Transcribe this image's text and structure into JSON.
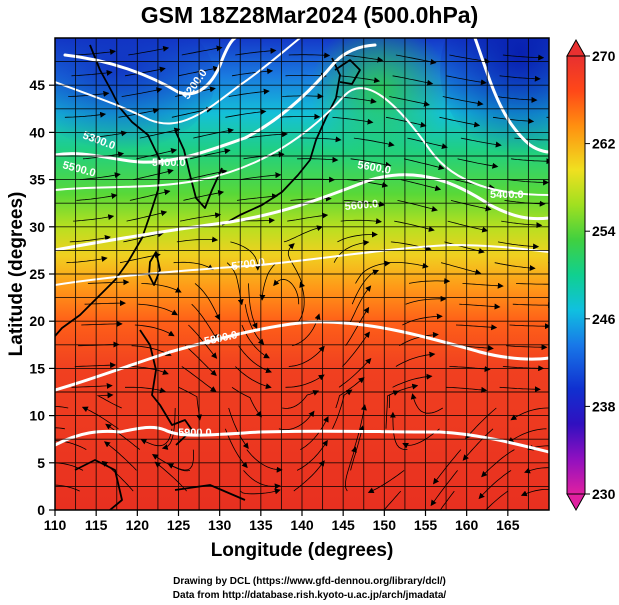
{
  "title": "GSM 18Z28Mar2024 (500.0hPa)",
  "xlabel": "Longitude (degrees)",
  "ylabel": "Latitude  (degrees)",
  "x_ticks": [
    "110",
    "115",
    "120",
    "125",
    "130",
    "135",
    "140",
    "145",
    "150",
    "155",
    "160",
    "165"
  ],
  "y_ticks": [
    "0",
    "5",
    "10",
    "15",
    "20",
    "25",
    "30",
    "35",
    "40",
    "45"
  ],
  "map": {
    "lon_range": [
      110,
      170
    ],
    "lat_range": [
      0,
      50
    ],
    "field": "temperature (K) with geopotential height contours (m) and wind streamlines"
  },
  "colorbar": {
    "range": [
      230,
      270
    ],
    "ticks": [
      "270",
      "262",
      "254",
      "246",
      "238",
      "230"
    ],
    "colors": [
      "#e020a0",
      "#8000c0",
      "#1020c0",
      "#1860e0",
      "#10b0e8",
      "#10d0a0",
      "#40d040",
      "#a8e020",
      "#f0e020",
      "#ff9010",
      "#ff4010",
      "#e82828"
    ]
  },
  "contours": [
    {
      "label": "5200.0"
    },
    {
      "label": "5300.0"
    },
    {
      "label": "5400.0"
    },
    {
      "label": "5400.0"
    },
    {
      "label": "5500.0"
    },
    {
      "label": "5600.0"
    },
    {
      "label": "5600.0"
    },
    {
      "label": "5700.0"
    },
    {
      "label": "5800.0"
    },
    {
      "label": "5900.0"
    }
  ],
  "credits": {
    "line1": "Drawing by DCL (https://www.gfd-dennou.org/library/dcl/)",
    "line2": "Data from http://database.rish.kyoto-u.ac.jp/arch/jmadata/"
  }
}
